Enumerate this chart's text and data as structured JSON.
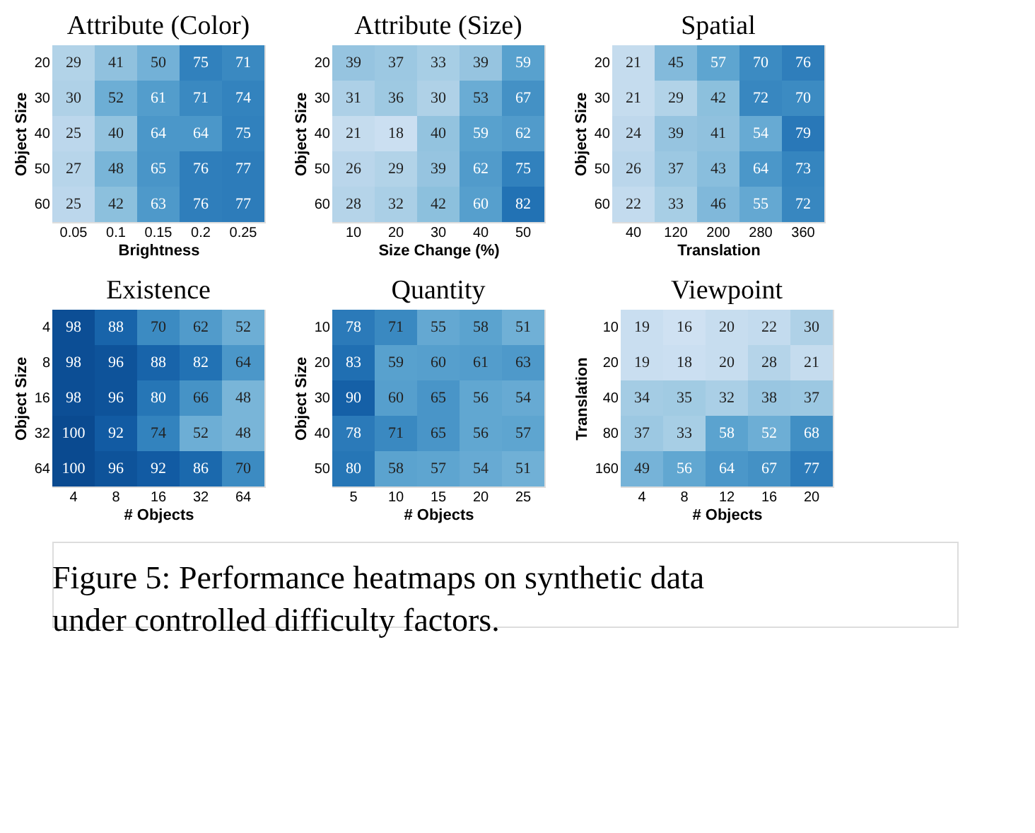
{
  "chart_data": [
    {
      "type": "heatmap",
      "title": "Attribute (Color)",
      "xlabel": "Brightness",
      "ylabel": "Object Size",
      "categories": [
        "0.05",
        "0.1",
        "0.15",
        "0.2",
        "0.25"
      ],
      "y_categories": [
        "20",
        "30",
        "40",
        "50",
        "60"
      ],
      "data_labels": true,
      "cells": [
        [
          29,
          41,
          50,
          75,
          71
        ],
        [
          30,
          52,
          61,
          71,
          74
        ],
        [
          25,
          40,
          64,
          64,
          75
        ],
        [
          27,
          48,
          65,
          76,
          77
        ],
        [
          25,
          42,
          63,
          76,
          77
        ]
      ]
    },
    {
      "type": "heatmap",
      "title": "Attribute (Size)",
      "xlabel": "Size Change (%)",
      "ylabel": "Object Size",
      "categories": [
        "10",
        "20",
        "30",
        "40",
        "50"
      ],
      "y_categories": [
        "20",
        "30",
        "40",
        "50",
        "60"
      ],
      "data_labels": true,
      "cells": [
        [
          39,
          37,
          33,
          39,
          59
        ],
        [
          31,
          36,
          30,
          53,
          67
        ],
        [
          21,
          18,
          40,
          59,
          62
        ],
        [
          26,
          29,
          39,
          62,
          75
        ],
        [
          28,
          32,
          42,
          60,
          82
        ]
      ]
    },
    {
      "type": "heatmap",
      "title": "Spatial",
      "xlabel": "Translation",
      "ylabel": "Object Size",
      "categories": [
        "40",
        "120",
        "200",
        "280",
        "360"
      ],
      "y_categories": [
        "20",
        "30",
        "40",
        "50",
        "60"
      ],
      "data_labels": true,
      "cells": [
        [
          21,
          45,
          57,
          70,
          76
        ],
        [
          21,
          29,
          42,
          72,
          70
        ],
        [
          24,
          39,
          41,
          54,
          79
        ],
        [
          26,
          37,
          43,
          64,
          73
        ],
        [
          22,
          33,
          46,
          55,
          72
        ]
      ]
    },
    {
      "type": "heatmap",
      "title": "Existence",
      "xlabel": "# Objects",
      "ylabel": "Object Size",
      "categories": [
        "4",
        "8",
        "16",
        "32",
        "64"
      ],
      "y_categories": [
        "4",
        "8",
        "16",
        "32",
        "64"
      ],
      "data_labels": true,
      "cells": [
        [
          98,
          88,
          70,
          62,
          52
        ],
        [
          98,
          96,
          88,
          82,
          64
        ],
        [
          98,
          96,
          80,
          66,
          48
        ],
        [
          100,
          92,
          74,
          52,
          48
        ],
        [
          100,
          96,
          92,
          86,
          70
        ]
      ]
    },
    {
      "type": "heatmap",
      "title": "Quantity",
      "xlabel": "# Objects",
      "ylabel": "Object Size",
      "categories": [
        "5",
        "10",
        "15",
        "20",
        "25"
      ],
      "y_categories": [
        "10",
        "20",
        "30",
        "40",
        "50"
      ],
      "data_labels": true,
      "cells": [
        [
          78,
          71,
          55,
          58,
          51
        ],
        [
          83,
          59,
          60,
          61,
          63
        ],
        [
          90,
          60,
          65,
          56,
          54
        ],
        [
          78,
          71,
          65,
          56,
          57
        ],
        [
          80,
          58,
          57,
          54,
          51
        ]
      ]
    },
    {
      "type": "heatmap",
      "title": "Viewpoint",
      "xlabel": "# Objects",
      "ylabel": "Translation",
      "categories": [
        "4",
        "8",
        "12",
        "16",
        "20"
      ],
      "y_categories": [
        "10",
        "20",
        "40",
        "80",
        "160"
      ],
      "data_labels": true,
      "cells": [
        [
          19,
          16,
          20,
          22,
          30
        ],
        [
          19,
          18,
          20,
          28,
          21
        ],
        [
          34,
          35,
          32,
          38,
          37
        ],
        [
          37,
          33,
          58,
          52,
          68
        ],
        [
          49,
          56,
          64,
          67,
          77
        ]
      ],
      "annotations": [
        "Figure 5: Performance heatmaps on synthetic data under controlled difficulty factors."
      ]
    }
  ]
}
